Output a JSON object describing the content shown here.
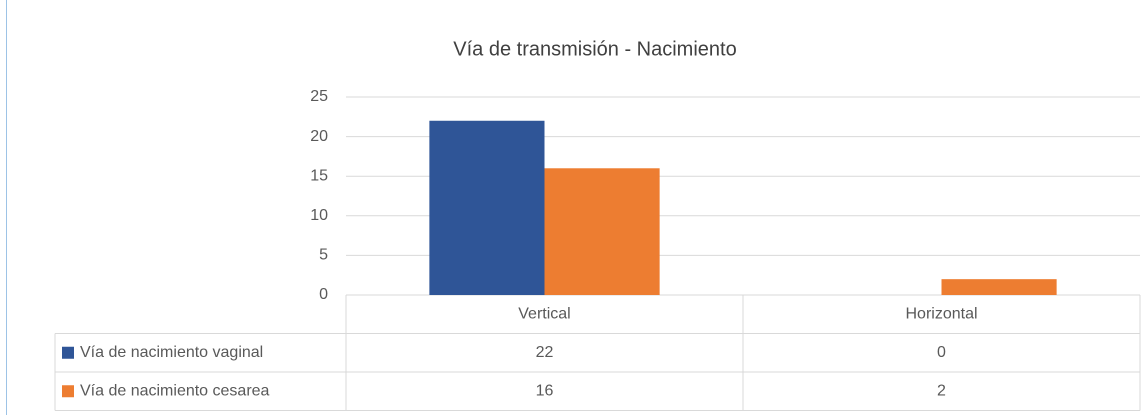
{
  "chart_data": {
    "type": "bar",
    "title": "Vía de transmisión - Nacimiento",
    "categories": [
      "Vertical",
      "Horizontal"
    ],
    "series": [
      {
        "name": "Vía de nacimiento vaginal",
        "color": "#2f5597",
        "values": [
          22,
          0
        ]
      },
      {
        "name": "Vía de nacimiento cesarea",
        "color": "#ed7d31",
        "values": [
          16,
          2
        ]
      }
    ],
    "ylim": [
      0,
      25
    ],
    "yticks": [
      0,
      5,
      10,
      15,
      20,
      25
    ],
    "grid": true
  }
}
